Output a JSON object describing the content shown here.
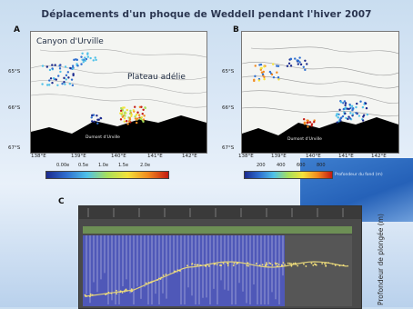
{
  "title": "Déplacements d'un phoque de Weddell pendant l'hiver 2007",
  "panels": {
    "a": {
      "letter": "A",
      "labels": {
        "canyon": "Canyon d'Urville",
        "plateau": "Plateau adélie",
        "base": "Dumont d'Urville"
      },
      "lat_ticks": [
        "65°S",
        "66°S",
        "67°S"
      ],
      "lon_ticks": [
        "138°E",
        "139°E",
        "140°E",
        "141°E",
        "142°E"
      ],
      "colorbar_labels": [
        "0.00e",
        "0.5e",
        "1.0e",
        "1.5e",
        "2.0e"
      ],
      "colors": [
        "#1b2a8e",
        "#2f6fd0",
        "#4fc1e8",
        "#a8e05a",
        "#f4e23a",
        "#f28a1e",
        "#c41a12"
      ]
    },
    "b": {
      "letter": "B",
      "labels": {
        "base": "Dumont d'Urville"
      },
      "lat_ticks": [
        "65°S",
        "66°S",
        "67°S"
      ],
      "lon_ticks": [
        "138°E",
        "139°E",
        "140°E",
        "141°E",
        "142°E"
      ],
      "colorbar_labels": [
        "200",
        "400",
        "600",
        "800"
      ],
      "side_note": "Profondeur du fond (m)",
      "colors": [
        "#1b2a8e",
        "#2f6fd0",
        "#4fc1e8",
        "#a8e05a",
        "#f4e23a",
        "#f28a1e",
        "#c41a12"
      ]
    },
    "c": {
      "letter": "C",
      "axis_label": "Profondeur de plongée (m)"
    }
  }
}
